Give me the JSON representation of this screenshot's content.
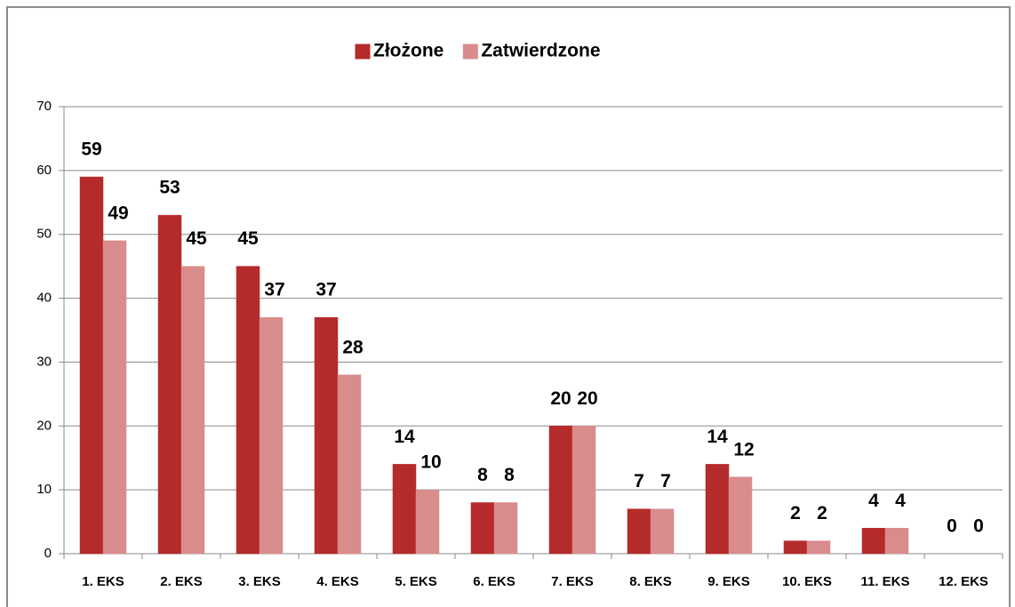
{
  "chart_data": {
    "type": "bar",
    "categories": [
      "1. EKS",
      "2. EKS",
      "3. EKS",
      "4. EKS",
      "5. EKS",
      "6. EKS",
      "7. EKS",
      "8. EKS",
      "9. EKS",
      "10. EKS",
      "11. EKS",
      "12. EKS"
    ],
    "series": [
      {
        "name": "Złożone",
        "color": "#b52a2a",
        "values": [
          59,
          53,
          45,
          37,
          14,
          8,
          20,
          7,
          14,
          2,
          4,
          0
        ]
      },
      {
        "name": "Zatwierdzone",
        "color": "#d98c8c",
        "values": [
          49,
          45,
          37,
          28,
          10,
          8,
          20,
          7,
          12,
          2,
          4,
          0
        ]
      }
    ],
    "ylim": [
      0,
      70
    ],
    "yticks": [
      0,
      10,
      20,
      30,
      40,
      50,
      60,
      70
    ],
    "grid": true,
    "legend": "top"
  }
}
